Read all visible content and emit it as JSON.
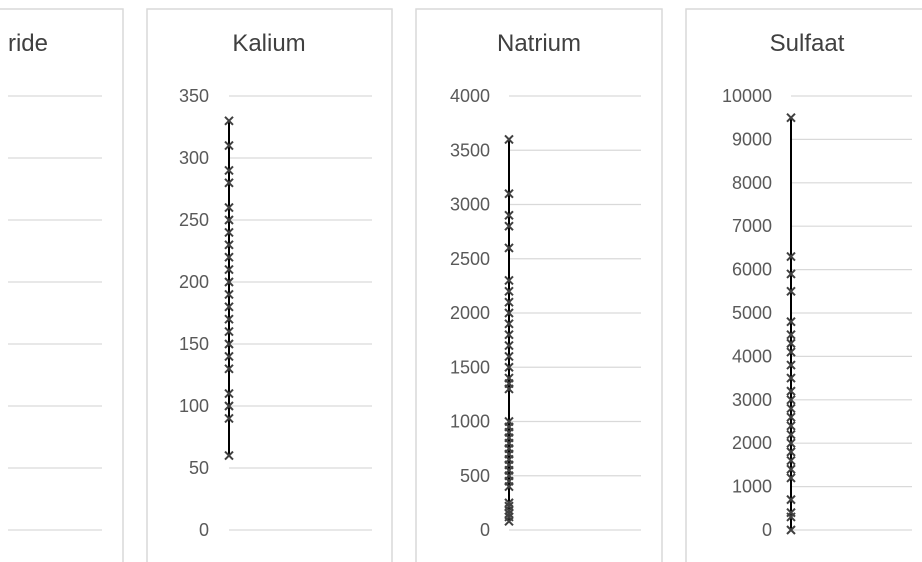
{
  "chart_data": [
    {
      "type": "scatter",
      "title": "Chloride",
      "title_visible": "ride",
      "partial": true,
      "gridlines": 8
    },
    {
      "type": "scatter",
      "title": "Kalium",
      "ylim": [
        0,
        350
      ],
      "yticks": [
        0,
        50,
        100,
        150,
        200,
        250,
        300,
        350
      ],
      "ytick_labels": [
        "0",
        "50",
        "100",
        "150",
        "200",
        "250",
        "300",
        "350"
      ],
      "grid": true,
      "range_line": [
        60,
        330
      ],
      "values": [
        60,
        90,
        100,
        110,
        130,
        140,
        150,
        160,
        170,
        180,
        190,
        200,
        210,
        220,
        230,
        240,
        250,
        260,
        280,
        290,
        310,
        330
      ]
    },
    {
      "type": "scatter",
      "title": "Natrium",
      "ylim": [
        0,
        4000
      ],
      "yticks": [
        0,
        500,
        1000,
        1500,
        2000,
        2500,
        3000,
        3500,
        4000
      ],
      "ytick_labels": [
        "0",
        "500",
        "1000",
        "1500",
        "2000",
        "2500",
        "3000",
        "3500",
        "4000"
      ],
      "grid": true,
      "range_line": [
        80,
        3600
      ],
      "values": [
        80,
        120,
        150,
        180,
        220,
        250,
        400,
        450,
        500,
        550,
        600,
        650,
        700,
        750,
        800,
        850,
        900,
        950,
        1000,
        1300,
        1350,
        1400,
        1500,
        1600,
        1700,
        1800,
        1900,
        2000,
        2100,
        2200,
        2300,
        2600,
        2800,
        2900,
        3100,
        3600
      ]
    },
    {
      "type": "scatter",
      "title": "Sulfaat",
      "ylim": [
        0,
        10000
      ],
      "yticks": [
        0,
        1000,
        2000,
        3000,
        4000,
        5000,
        6000,
        7000,
        8000,
        9000,
        10000
      ],
      "ytick_labels": [
        "0",
        "1000",
        "2000",
        "3000",
        "4000",
        "5000",
        "6000",
        "7000",
        "8000",
        "9000",
        "10000"
      ],
      "grid": true,
      "range_line": [
        0,
        9500
      ],
      "values": [
        0,
        300,
        400,
        700,
        1200,
        1400,
        1600,
        1800,
        2000,
        2200,
        2400,
        2600,
        2800,
        3000,
        3200,
        3500,
        3800,
        4100,
        4300,
        4500,
        4800,
        5500,
        5900,
        6300,
        9500
      ]
    }
  ],
  "colors": {
    "panel_border": "#d9d9d9",
    "gridline": "#d9d9d9",
    "axis_text": "#595959",
    "title_text": "#404040",
    "marker": "#404040",
    "range_line": "#000000"
  }
}
